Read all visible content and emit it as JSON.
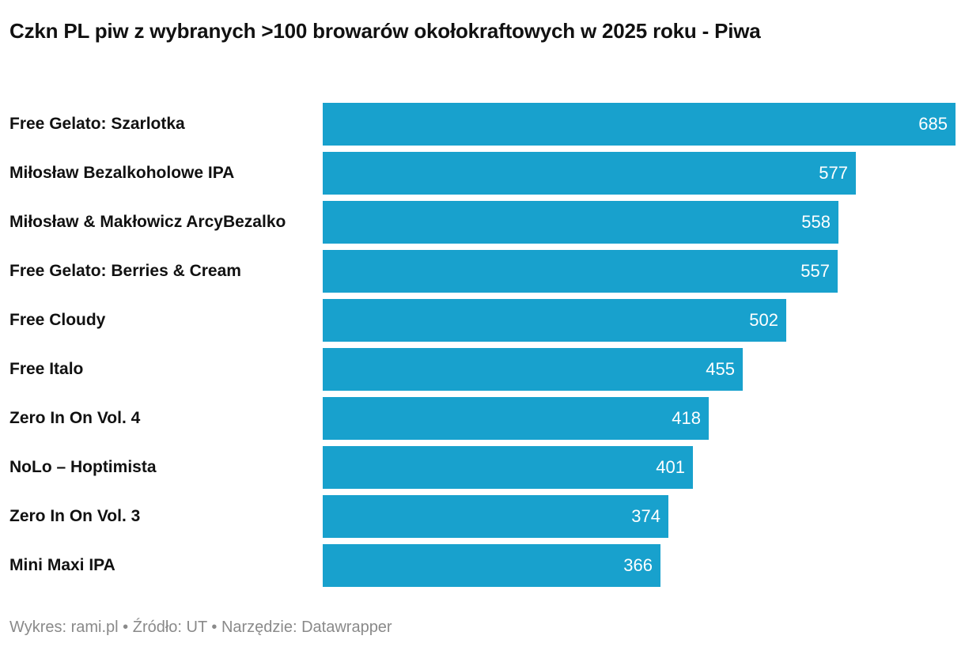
{
  "chart_data": {
    "type": "bar",
    "orientation": "horizontal",
    "title": "Czkn PL piw z wybranych >100 browarów okołokraftowych w 2025 roku - Piwa",
    "categories": [
      "Free Gelato: Szarlotka",
      "Miłosław Bezalkoholowe IPA",
      "Miłosław & Makłowicz ArcyBezalko",
      "Free Gelato: Berries & Cream",
      "Free Cloudy",
      "Free Italo",
      "Zero In On Vol. 4",
      "NoLo – Hoptimista",
      "Zero In On Vol. 3",
      "Mini Maxi IPA"
    ],
    "values": [
      685,
      577,
      558,
      557,
      502,
      455,
      418,
      401,
      374,
      366
    ],
    "xlim": [
      0,
      685
    ],
    "xlabel": "",
    "ylabel": "",
    "bar_color": "#18a1cd",
    "value_label_color": "#ffffff"
  },
  "footer": {
    "text": "Wykres: rami.pl • Źródło: UT • Narzędzie: Datawrapper"
  },
  "colors": {
    "text": "#111111",
    "footer": "#8a8a8a",
    "background": "#ffffff"
  }
}
